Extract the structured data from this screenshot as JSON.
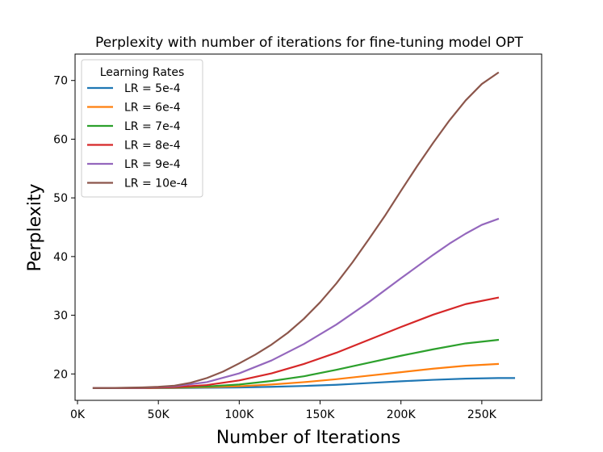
{
  "chart_data": {
    "type": "line",
    "title": "Perplexity with number of iterations for fine-tuning model OPT",
    "xlabel": "Number of Iterations",
    "ylabel": "Perplexity",
    "xlim": [
      -1500,
      287000
    ],
    "ylim": [
      15.5,
      74.5
    ],
    "xticks": [
      0,
      50000,
      100000,
      150000,
      200000,
      250000
    ],
    "xtick_labels": [
      "0K",
      "50K",
      "100K",
      "150K",
      "200K",
      "250K"
    ],
    "yticks": [
      20,
      30,
      40,
      50,
      60,
      70
    ],
    "ytick_labels": [
      "20",
      "30",
      "40",
      "50",
      "60",
      "70"
    ],
    "legend": {
      "title": "Learning Rates",
      "position": "top-left"
    },
    "series": [
      {
        "name": "LR = 5e-4",
        "color": "#1f77b4",
        "x": [
          10000,
          20000,
          40000,
          60000,
          80000,
          100000,
          120000,
          140000,
          160000,
          180000,
          200000,
          220000,
          240000,
          260000,
          270000
        ],
        "y": [
          17.6,
          17.6,
          17.6,
          17.6,
          17.65,
          17.7,
          17.8,
          17.95,
          18.15,
          18.45,
          18.75,
          19.0,
          19.2,
          19.3,
          19.3
        ]
      },
      {
        "name": "LR = 6e-4",
        "color": "#ff7f0e",
        "x": [
          10000,
          20000,
          40000,
          60000,
          80000,
          100000,
          120000,
          140000,
          160000,
          180000,
          200000,
          220000,
          240000,
          260000
        ],
        "y": [
          17.6,
          17.6,
          17.6,
          17.65,
          17.75,
          17.9,
          18.2,
          18.6,
          19.1,
          19.7,
          20.3,
          20.9,
          21.4,
          21.7
        ]
      },
      {
        "name": "LR = 7e-4",
        "color": "#2ca02c",
        "x": [
          10000,
          20000,
          40000,
          60000,
          80000,
          100000,
          120000,
          140000,
          160000,
          180000,
          200000,
          220000,
          240000,
          260000
        ],
        "y": [
          17.6,
          17.6,
          17.6,
          17.7,
          17.85,
          18.2,
          18.8,
          19.6,
          20.7,
          21.9,
          23.1,
          24.2,
          25.2,
          25.8
        ]
      },
      {
        "name": "LR = 8e-4",
        "color": "#d62728",
        "x": [
          10000,
          20000,
          40000,
          60000,
          80000,
          100000,
          120000,
          140000,
          160000,
          180000,
          200000,
          220000,
          240000,
          260000
        ],
        "y": [
          17.6,
          17.6,
          17.6,
          17.75,
          18.1,
          18.9,
          20.1,
          21.7,
          23.6,
          25.8,
          28.0,
          30.1,
          31.9,
          33.0
        ]
      },
      {
        "name": "LR = 9e-4",
        "color": "#9467bd",
        "x": [
          10000,
          20000,
          40000,
          60000,
          80000,
          100000,
          120000,
          140000,
          160000,
          180000,
          200000,
          220000,
          230000,
          240000,
          250000,
          260000
        ],
        "y": [
          17.6,
          17.6,
          17.65,
          17.9,
          18.6,
          20.1,
          22.3,
          25.1,
          28.4,
          32.2,
          36.3,
          40.3,
          42.2,
          43.9,
          45.4,
          46.4
        ]
      },
      {
        "name": "LR = 10e-4",
        "color": "#8c564b",
        "x": [
          10000,
          20000,
          40000,
          50000,
          60000,
          70000,
          80000,
          90000,
          100000,
          110000,
          120000,
          130000,
          140000,
          150000,
          160000,
          170000,
          180000,
          190000,
          200000,
          210000,
          220000,
          230000,
          240000,
          250000,
          260000
        ],
        "y": [
          17.6,
          17.6,
          17.7,
          17.8,
          18.0,
          18.5,
          19.3,
          20.4,
          21.8,
          23.3,
          25.0,
          27.0,
          29.4,
          32.2,
          35.4,
          39.0,
          42.9,
          46.9,
          51.2,
          55.4,
          59.4,
          63.2,
          66.6,
          69.4,
          71.3
        ]
      }
    ]
  }
}
